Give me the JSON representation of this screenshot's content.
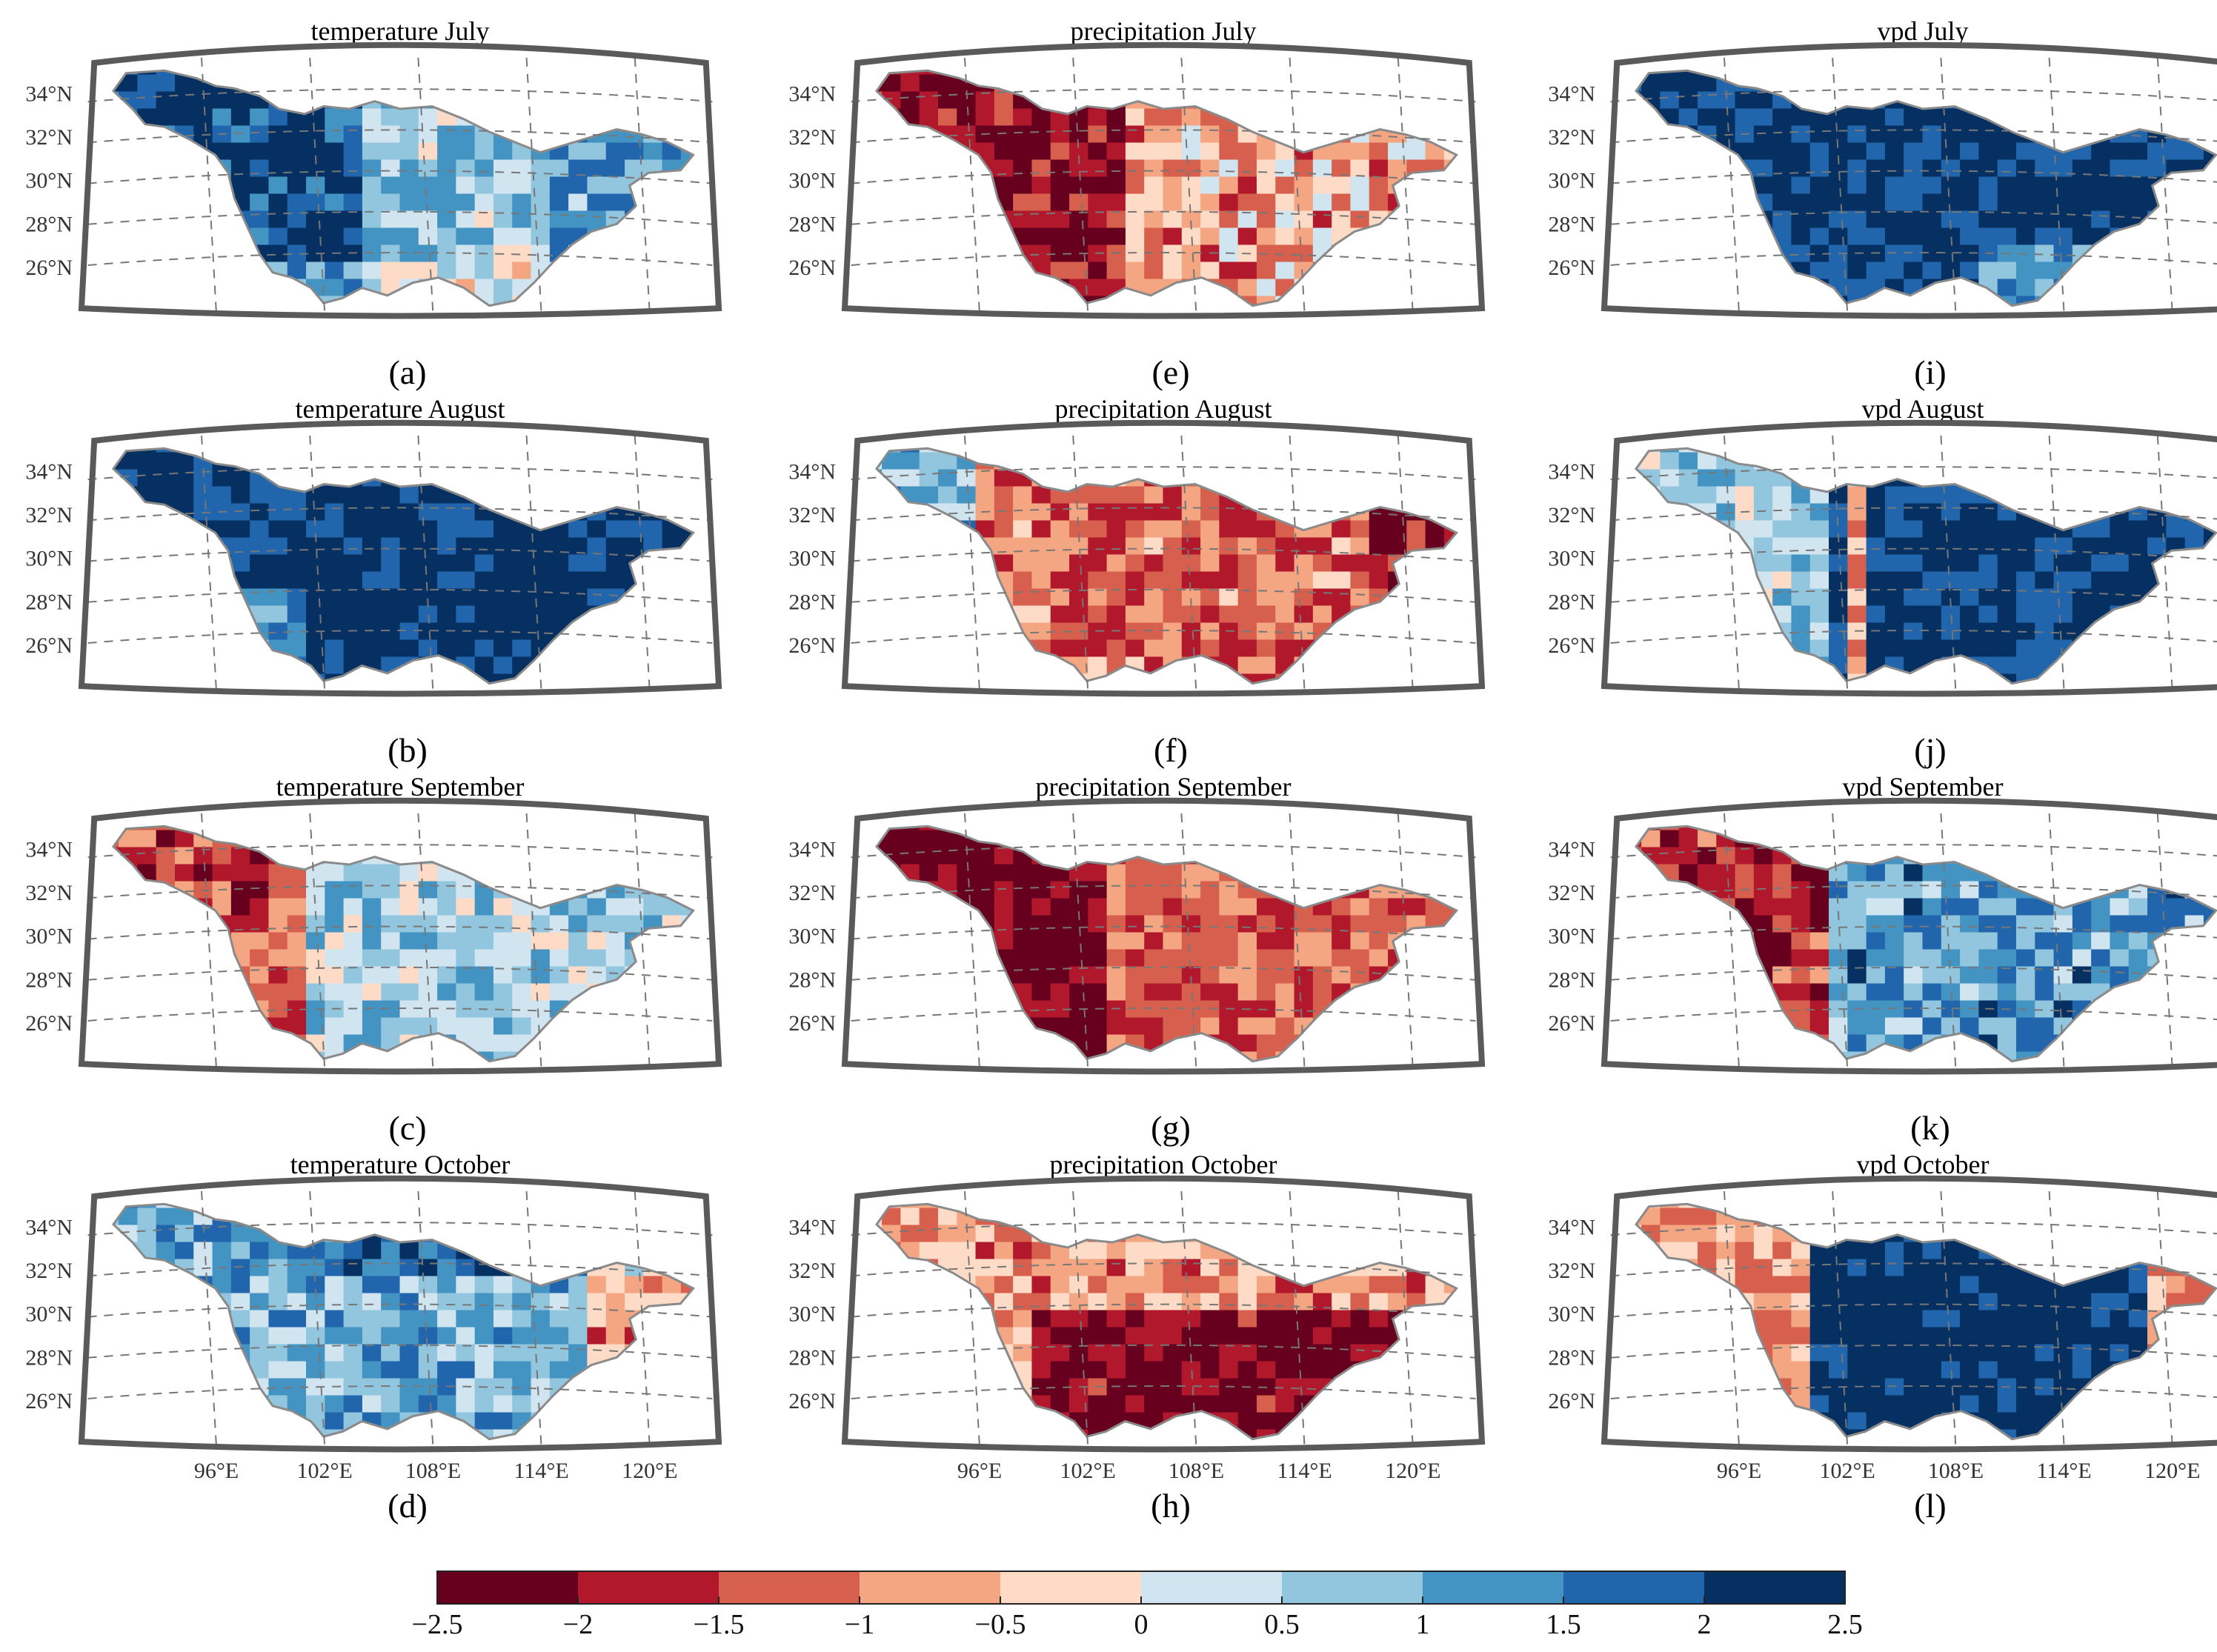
{
  "figure": {
    "rows": [
      "July",
      "August",
      "September",
      "October"
    ],
    "columns": [
      "temperature",
      "precipitation",
      "vpd"
    ]
  },
  "chart_data": [
    {
      "type": "heatmap",
      "panel": "(a)",
      "title": "temperature July",
      "variable": "temperature",
      "month": "July",
      "lat_ticks": [
        "34°N",
        "32°N",
        "30°N",
        "28°N",
        "26°N"
      ],
      "lon_ticks": [],
      "dominant_class": 1.5,
      "pattern": "warm anomalies; strong positive in central basin, mild positive to slightly negative in east"
    },
    {
      "type": "heatmap",
      "panel": "(b)",
      "title": "temperature August",
      "variable": "temperature",
      "month": "August",
      "lat_ticks": [
        "34°N",
        "32°N",
        "30°N",
        "28°N",
        "26°N"
      ],
      "lon_ticks": [],
      "dominant_class": 2.5,
      "pattern": "strongly positive over almost the entire basin"
    },
    {
      "type": "heatmap",
      "panel": "(c)",
      "title": "temperature September",
      "variable": "temperature",
      "month": "September",
      "lat_ticks": [
        "34°N",
        "32°N",
        "30°N",
        "28°N",
        "26°N"
      ],
      "lon_ticks": [],
      "dominant_class": 0.5,
      "pattern": "negative in west (~102°E), weakly positive in central and east"
    },
    {
      "type": "heatmap",
      "panel": "(d)",
      "title": "temperature October",
      "variable": "temperature",
      "month": "October",
      "lat_ticks": [
        "34°N",
        "32°N",
        "30°N",
        "28°N",
        "26°N"
      ],
      "lon_ticks": [
        "96°E",
        "102°E",
        "108°E",
        "114°E",
        "120°E"
      ],
      "dominant_class": 1.0,
      "pattern": "mostly positive, weak negative in far east"
    },
    {
      "type": "heatmap",
      "panel": "(e)",
      "title": "precipitation July",
      "variable": "precipitation",
      "month": "July",
      "lat_ticks": [
        "34°N",
        "32°N",
        "30°N",
        "28°N",
        "26°N"
      ],
      "lon_ticks": [],
      "dominant_class": -1.5,
      "pattern": "strong deficit in west, weaker in east"
    },
    {
      "type": "heatmap",
      "panel": "(f)",
      "title": "precipitation August",
      "variable": "precipitation",
      "month": "August",
      "lat_ticks": [
        "34°N",
        "32°N",
        "30°N",
        "28°N",
        "26°N"
      ],
      "lon_ticks": [],
      "dominant_class": -1.0,
      "pattern": "widespread deficit, positive patch in far northwest"
    },
    {
      "type": "heatmap",
      "panel": "(g)",
      "title": "precipitation September",
      "variable": "precipitation",
      "month": "September",
      "lat_ticks": [
        "34°N",
        "32°N",
        "30°N",
        "28°N",
        "26°N"
      ],
      "lon_ticks": [],
      "dominant_class": -2.0,
      "pattern": "strong deficit across basin, strongest in west"
    },
    {
      "type": "heatmap",
      "panel": "(h)",
      "title": "precipitation October",
      "variable": "precipitation",
      "month": "October",
      "lat_ticks": [
        "34°N",
        "32°N",
        "30°N",
        "28°N",
        "26°N"
      ],
      "lon_ticks": [
        "96°E",
        "102°E",
        "108°E",
        "114°E",
        "120°E"
      ],
      "dominant_class": -2.0,
      "pattern": "strong deficit in central-south basin"
    },
    {
      "type": "heatmap",
      "panel": "(i)",
      "title": "vpd July",
      "variable": "vpd",
      "month": "July",
      "lat_ticks": [
        "34°N",
        "32°N",
        "30°N",
        "28°N",
        "26°N"
      ],
      "lon_ticks": [],
      "dominant_class": 2.0,
      "pattern": "strongly positive nearly everywhere"
    },
    {
      "type": "heatmap",
      "panel": "(j)",
      "title": "vpd August",
      "variable": "vpd",
      "month": "August",
      "lat_ticks": [
        "34°N",
        "32°N",
        "30°N",
        "28°N",
        "26°N"
      ],
      "lon_ticks": [],
      "dominant_class": 2.0,
      "pattern": "strongly positive in centre and east, weak in west"
    },
    {
      "type": "heatmap",
      "panel": "(k)",
      "title": "vpd September",
      "variable": "vpd",
      "month": "September",
      "lat_ticks": [
        "34°N",
        "32°N",
        "30°N",
        "28°N",
        "26°N"
      ],
      "lon_ticks": [],
      "dominant_class": 1.0,
      "pattern": "negative band in west (~102°E), positive in centre and east"
    },
    {
      "type": "heatmap",
      "panel": "(l)",
      "title": "vpd October",
      "variable": "vpd",
      "month": "October",
      "lat_ticks": [
        "34°N",
        "32°N",
        "30°N",
        "28°N",
        "26°N"
      ],
      "lon_ticks": [
        "96°E",
        "102°E",
        "108°E",
        "114°E",
        "120°E"
      ],
      "dominant_class": 2.0,
      "pattern": "strongly positive in central basin, negative in west"
    }
  ],
  "colorbar": {
    "ticks": [
      "−2.5",
      "−2",
      "−1.5",
      "−1",
      "−0.5",
      "0",
      "0.5",
      "1",
      "1.5",
      "2",
      "2.5"
    ],
    "range": [
      -2.5,
      2.5
    ],
    "colors": [
      "#67001f",
      "#b2182b",
      "#d6604d",
      "#f4a582",
      "#fddbc7",
      "#d1e5f0",
      "#92c5de",
      "#4393c3",
      "#2166ac",
      "#053061"
    ]
  },
  "styles": {
    "frame_color": "#5a5a5a",
    "grid_color": "#777777",
    "outline_color": "#8a8a8a"
  }
}
